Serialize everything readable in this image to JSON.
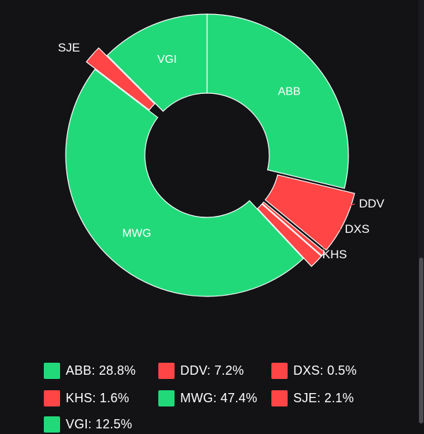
{
  "chart_data": {
    "type": "pie",
    "donut": true,
    "legend_position": "bottom",
    "slices": [
      {
        "name": "ABB",
        "value": 28.8,
        "color": "#22d97a",
        "legend_label": "ABB: 28.8%",
        "label_position": "inside"
      },
      {
        "name": "DDV",
        "value": 7.2,
        "color": "#ff4545",
        "legend_label": "DDV: 7.2%",
        "label_position": "outside",
        "exploded": true
      },
      {
        "name": "DXS",
        "value": 0.5,
        "color": "#ff4545",
        "legend_label": "DXS: 0.5%",
        "label_position": "outside",
        "exploded": true
      },
      {
        "name": "KHS",
        "value": 1.6,
        "color": "#ff4545",
        "legend_label": "KHS: 1.6%",
        "label_position": "outside",
        "exploded": true
      },
      {
        "name": "MWG",
        "value": 47.4,
        "color": "#22d97a",
        "legend_label": "MWG: 47.4%",
        "label_position": "inside"
      },
      {
        "name": "SJE",
        "value": 2.1,
        "color": "#ff4545",
        "legend_label": "SJE: 2.1%",
        "label_position": "outside",
        "exploded": true
      },
      {
        "name": "VGI",
        "value": 12.5,
        "color": "#22d97a",
        "legend_label": "VGI: 12.5%",
        "label_position": "inside"
      }
    ]
  },
  "theme": {
    "background": "#131316",
    "gain_color": "#22d97a",
    "loss_color": "#ff4545",
    "text_color": "#ffffff"
  }
}
